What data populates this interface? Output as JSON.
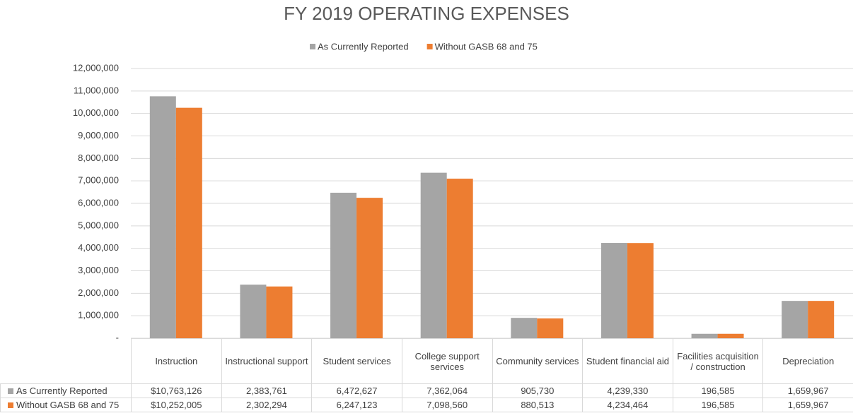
{
  "chart_data": {
    "type": "bar",
    "title": "FY 2019 OPERATING EXPENSES",
    "categories": [
      "Instruction",
      "Instructional support",
      "Student services",
      "College support services",
      "Community services",
      "Student financial aid",
      "Facilities acquisition / construction",
      "Depreciation"
    ],
    "series": [
      {
        "name": "As Currently Reported",
        "color": "#a5a5a5",
        "values": [
          10763126,
          2383761,
          6472627,
          7362064,
          905730,
          4239330,
          196585,
          1659967
        ],
        "value_labels": [
          "$10,763,126",
          "2,383,761",
          "6,472,627",
          "7,362,064",
          "905,730",
          "4,239,330",
          "196,585",
          "1,659,967"
        ]
      },
      {
        "name": "Without GASB 68 and 75",
        "color": "#ed7d31",
        "values": [
          10252005,
          2302294,
          6247123,
          7098560,
          880513,
          4234464,
          196585,
          1659967
        ],
        "value_labels": [
          "$10,252,005",
          "2,302,294",
          "6,247,123",
          "7,098,560",
          "880,513",
          "4,234,464",
          "196,585",
          "1,659,967"
        ]
      }
    ],
    "ylim": [
      0,
      12000000
    ],
    "yticks": [
      {
        "value": 0,
        "label": "-"
      },
      {
        "value": 1000000,
        "label": "1,000,000"
      },
      {
        "value": 2000000,
        "label": "2,000,000"
      },
      {
        "value": 3000000,
        "label": "3,000,000"
      },
      {
        "value": 4000000,
        "label": "4,000,000"
      },
      {
        "value": 5000000,
        "label": "5,000,000"
      },
      {
        "value": 6000000,
        "label": "6,000,000"
      },
      {
        "value": 7000000,
        "label": "7,000,000"
      },
      {
        "value": 8000000,
        "label": "8,000,000"
      },
      {
        "value": 9000000,
        "label": "9,000,000"
      },
      {
        "value": 10000000,
        "label": "10,000,000"
      },
      {
        "value": 11000000,
        "label": "11,000,000"
      },
      {
        "value": 12000000,
        "label": "12,000,000"
      }
    ],
    "grid": true,
    "legend": "top"
  }
}
